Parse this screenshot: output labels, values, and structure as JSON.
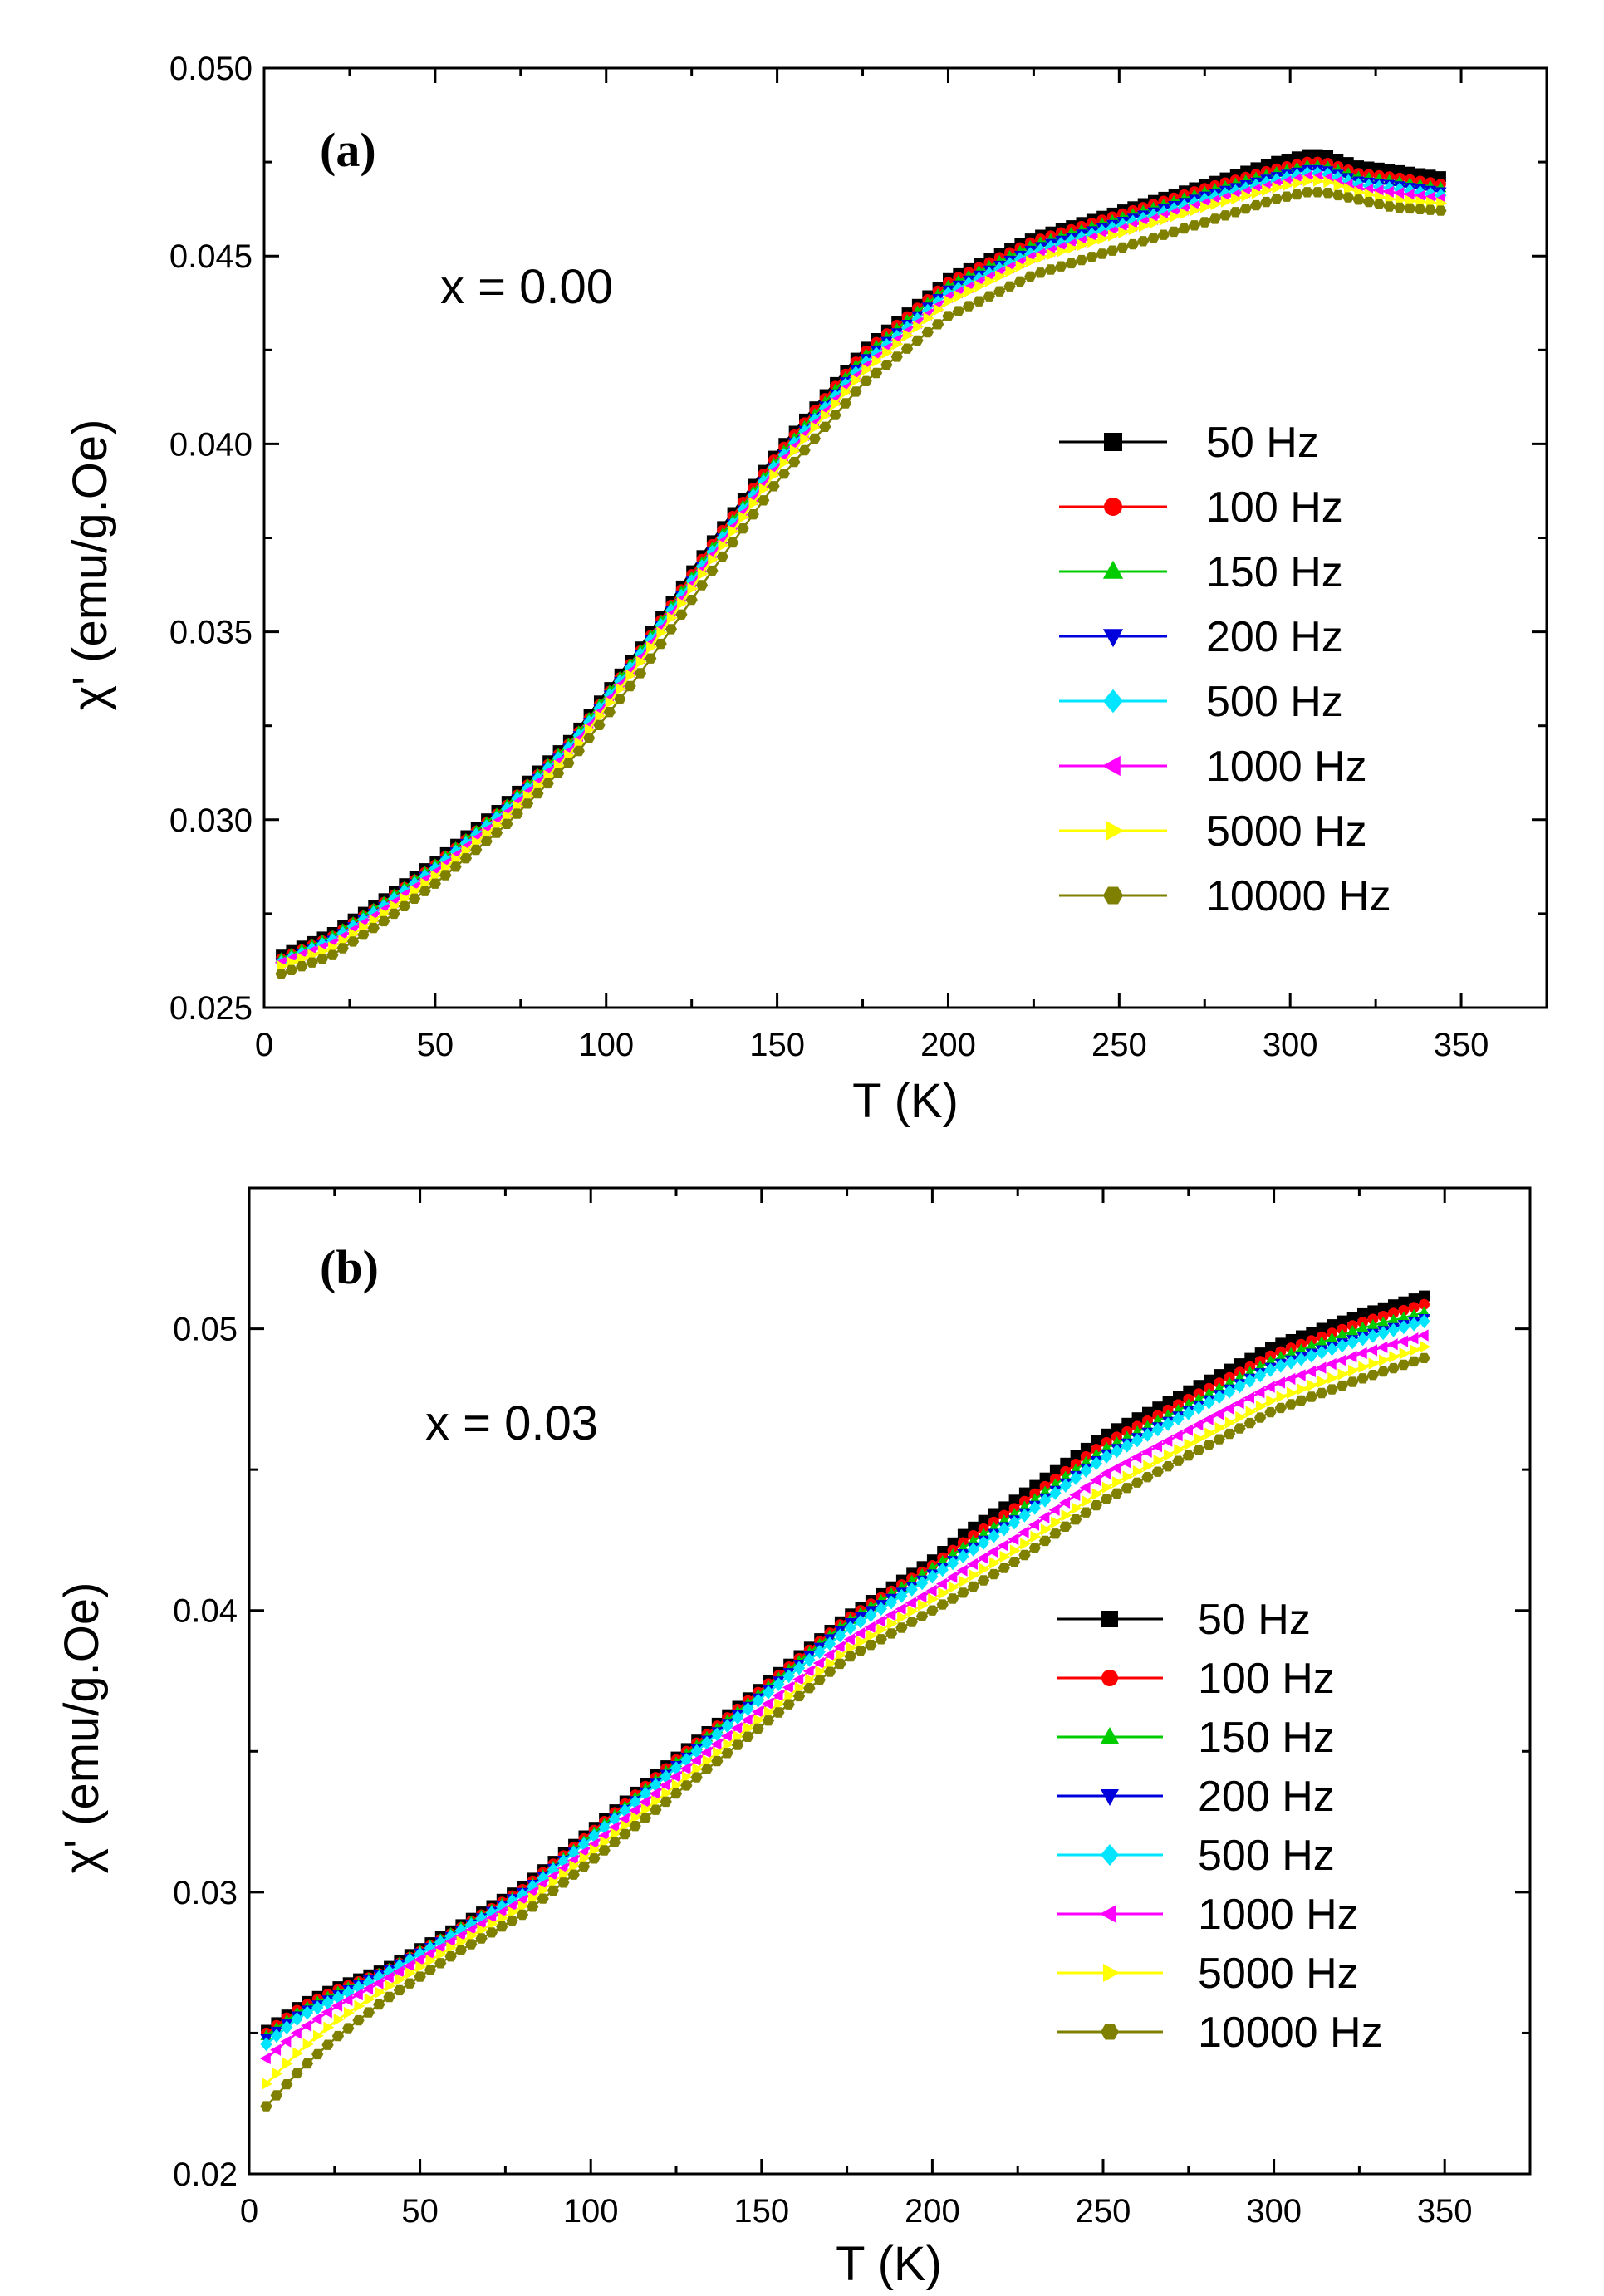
{
  "chart_data": [
    {
      "type": "scatter",
      "panel_label": "(a)",
      "annotation": "x = 0.00",
      "xlabel": "T (K)",
      "ylabel": "χ' (emu/g.Oe)",
      "xlim": [
        0,
        375
      ],
      "ylim": [
        0.025,
        0.05
      ],
      "xticks": [
        0,
        50,
        100,
        150,
        200,
        250,
        300,
        350
      ],
      "xtick_labels": [
        "0",
        "50",
        "100",
        "150",
        "200",
        "250",
        "300",
        "350"
      ],
      "yticks": [
        0.025,
        0.03,
        0.035,
        0.04,
        0.045,
        0.05
      ],
      "ytick_labels": [
        "0.025",
        "0.030",
        "0.035",
        "0.040",
        "0.045",
        "0.050"
      ],
      "grid": false,
      "legend_position": "right",
      "x": [
        5,
        20,
        35,
        50,
        70,
        90,
        110,
        130,
        150,
        175,
        200,
        225,
        250,
        275,
        295,
        305,
        310,
        320,
        330,
        345
      ],
      "series": [
        {
          "name": "50 Hz",
          "color": "#000000",
          "marker": "square",
          "values": [
            0.0264,
            0.027,
            0.0279,
            0.0289,
            0.0304,
            0.0322,
            0.0346,
            0.0373,
            0.0398,
            0.0425,
            0.0444,
            0.0455,
            0.0462,
            0.0469,
            0.0475,
            0.0477,
            0.0477,
            0.0474,
            0.0473,
            0.0471
          ]
        },
        {
          "name": "100 Hz",
          "color": "#ff0000",
          "marker": "circle",
          "values": [
            0.0263,
            0.0269,
            0.0278,
            0.0288,
            0.0303,
            0.0321,
            0.0345,
            0.0372,
            0.0397,
            0.0424,
            0.0443,
            0.0454,
            0.0461,
            0.0468,
            0.0473,
            0.0475,
            0.0475,
            0.0472,
            0.0471,
            0.0469
          ]
        },
        {
          "name": "150 Hz",
          "color": "#00cc00",
          "marker": "triangle-up",
          "values": [
            0.0263,
            0.0269,
            0.0278,
            0.0288,
            0.0303,
            0.0321,
            0.0345,
            0.0371,
            0.0396,
            0.0423,
            0.0442,
            0.0453,
            0.046,
            0.0467,
            0.0472,
            0.0474,
            0.0474,
            0.0471,
            0.047,
            0.0468
          ]
        },
        {
          "name": "200 Hz",
          "color": "#0000dd",
          "marker": "triangle-down",
          "values": [
            0.0262,
            0.0268,
            0.0277,
            0.0287,
            0.0302,
            0.032,
            0.0344,
            0.037,
            0.0395,
            0.0422,
            0.0441,
            0.0452,
            0.0459,
            0.0466,
            0.0471,
            0.0473,
            0.0473,
            0.047,
            0.0469,
            0.0467
          ]
        },
        {
          "name": "500 Hz",
          "color": "#00e5ff",
          "marker": "diamond",
          "values": [
            0.0262,
            0.0268,
            0.0277,
            0.0287,
            0.0302,
            0.032,
            0.0344,
            0.037,
            0.0395,
            0.0421,
            0.044,
            0.0451,
            0.0458,
            0.0465,
            0.047,
            0.0472,
            0.0472,
            0.0469,
            0.0468,
            0.0466
          ]
        },
        {
          "name": "1000 Hz",
          "color": "#ff00ff",
          "marker": "triangle-left",
          "values": [
            0.0262,
            0.0267,
            0.0276,
            0.0286,
            0.0301,
            0.0319,
            0.0343,
            0.0369,
            0.0394,
            0.042,
            0.0439,
            0.045,
            0.0457,
            0.0464,
            0.0469,
            0.0471,
            0.0471,
            0.0468,
            0.0467,
            0.0465
          ]
        },
        {
          "name": "5000 Hz",
          "color": "#ffff00",
          "marker": "triangle-right",
          "values": [
            0.0261,
            0.0266,
            0.0275,
            0.0285,
            0.03,
            0.0318,
            0.0342,
            0.0368,
            0.0393,
            0.0419,
            0.0438,
            0.0449,
            0.0456,
            0.0463,
            0.0468,
            0.047,
            0.047,
            0.0467,
            0.0465,
            0.0464
          ]
        },
        {
          "name": "10000 Hz",
          "color": "#808000",
          "marker": "hexagon",
          "values": [
            0.0259,
            0.0264,
            0.0273,
            0.0283,
            0.0298,
            0.0316,
            0.0339,
            0.0365,
            0.039,
            0.0416,
            0.0434,
            0.0445,
            0.0452,
            0.0459,
            0.0465,
            0.0467,
            0.0467,
            0.0465,
            0.0463,
            0.0462
          ]
        }
      ]
    },
    {
      "type": "scatter",
      "panel_label": "(b)",
      "annotation": "x = 0.03",
      "xlabel": "T (K)",
      "ylabel": "χ' (emu/g.Oe)",
      "xlim": [
        0,
        375
      ],
      "ylim": [
        0.02,
        0.055
      ],
      "xticks": [
        0,
        50,
        100,
        150,
        200,
        250,
        300,
        350
      ],
      "xtick_labels": [
        "0",
        "50",
        "100",
        "150",
        "200",
        "250",
        "300",
        "350"
      ],
      "yticks": [
        0.02,
        0.03,
        0.04,
        0.05
      ],
      "ytick_labels": [
        "0.02",
        "0.03",
        "0.04",
        "0.05"
      ],
      "grid": false,
      "legend_position": "right",
      "x": [
        5,
        15,
        25,
        40,
        60,
        80,
        100,
        125,
        150,
        175,
        200,
        210,
        225,
        250,
        275,
        300,
        325,
        345
      ],
      "series": [
        {
          "name": "50 Hz",
          "color": "#000000",
          "marker": "square",
          "values": [
            0.0251,
            0.026,
            0.0266,
            0.0273,
            0.0287,
            0.0302,
            0.0322,
            0.0348,
            0.0373,
            0.0398,
            0.0418,
            0.0428,
            0.044,
            0.0462,
            0.0478,
            0.0494,
            0.0505,
            0.0512
          ]
        },
        {
          "name": "100 Hz",
          "color": "#ff0000",
          "marker": "circle",
          "values": [
            0.025,
            0.0259,
            0.0265,
            0.0272,
            0.0286,
            0.0301,
            0.0321,
            0.0347,
            0.0372,
            0.0397,
            0.0416,
            0.0425,
            0.0437,
            0.0459,
            0.0475,
            0.0491,
            0.0502,
            0.0509
          ]
        },
        {
          "name": "150 Hz",
          "color": "#00cc00",
          "marker": "triangle-up",
          "values": [
            0.0249,
            0.0258,
            0.0264,
            0.0272,
            0.0286,
            0.03,
            0.032,
            0.0346,
            0.0371,
            0.0396,
            0.0415,
            0.0423,
            0.0435,
            0.0457,
            0.0473,
            0.0489,
            0.05,
            0.0506
          ]
        },
        {
          "name": "200 Hz",
          "color": "#0000dd",
          "marker": "triangle-down",
          "values": [
            0.0248,
            0.0257,
            0.0263,
            0.0272,
            0.0285,
            0.03,
            0.0319,
            0.0345,
            0.037,
            0.0395,
            0.0413,
            0.0421,
            0.0433,
            0.0455,
            0.0471,
            0.0487,
            0.0497,
            0.0504
          ]
        },
        {
          "name": "500 Hz",
          "color": "#00e5ff",
          "marker": "diamond",
          "values": [
            0.0246,
            0.0256,
            0.0262,
            0.0271,
            0.0285,
            0.0299,
            0.0319,
            0.0344,
            0.0369,
            0.0393,
            0.0412,
            0.042,
            0.0432,
            0.0454,
            0.047,
            0.0486,
            0.0496,
            0.0503
          ]
        },
        {
          "name": "1000 Hz",
          "color": "#ff00ff",
          "marker": "triangle-left",
          "values": [
            0.0241,
            0.0251,
            0.0259,
            0.0269,
            0.0283,
            0.0297,
            0.0316,
            0.0341,
            0.0365,
            0.0389,
            0.0407,
            0.0415,
            0.0426,
            0.0448,
            0.0464,
            0.048,
            0.0491,
            0.0498
          ]
        },
        {
          "name": "5000 Hz",
          "color": "#ffff00",
          "marker": "triangle-right",
          "values": [
            0.0232,
            0.0244,
            0.0254,
            0.0266,
            0.0281,
            0.0295,
            0.0314,
            0.0338,
            0.0362,
            0.0386,
            0.0404,
            0.0411,
            0.0422,
            0.0443,
            0.0459,
            0.0475,
            0.0486,
            0.0494
          ]
        },
        {
          "name": "10000 Hz",
          "color": "#808000",
          "marker": "hexagon",
          "values": [
            0.0224,
            0.0237,
            0.0248,
            0.0262,
            0.0278,
            0.0292,
            0.0311,
            0.0335,
            0.0359,
            0.0383,
            0.04,
            0.0407,
            0.0418,
            0.0439,
            0.0455,
            0.0471,
            0.0482,
            0.049
          ]
        }
      ]
    }
  ]
}
